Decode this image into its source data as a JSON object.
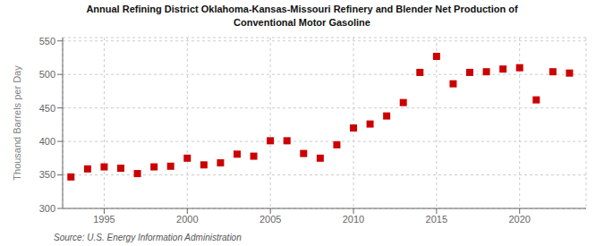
{
  "chart_data": {
    "type": "scatter",
    "title": "Annual Refining District Oklahoma-Kansas-Missouri Refinery and Blender Net Production of\nConventional Motor Gasoline",
    "ylabel": "Thousand Barrels per Day",
    "annotations": [
      "Source: U.S. Energy Information Administration"
    ],
    "x": [
      1993,
      1994,
      1995,
      1996,
      1997,
      1998,
      1999,
      2000,
      2001,
      2002,
      2003,
      2004,
      2005,
      2006,
      2007,
      2008,
      2009,
      2010,
      2011,
      2012,
      2013,
      2014,
      2015,
      2016,
      2017,
      2018,
      2019,
      2020,
      2021,
      2022,
      2023
    ],
    "values": [
      347,
      359,
      362,
      360,
      352,
      362,
      363,
      375,
      365,
      368,
      381,
      378,
      401,
      401,
      382,
      375,
      395,
      420,
      426,
      438,
      458,
      503,
      527,
      486,
      503,
      504,
      508,
      510,
      462,
      504,
      502
    ],
    "color": "#cc0000",
    "marker": "square",
    "xlim": [
      1992.5,
      2024
    ],
    "xticks": [
      1995,
      2000,
      2005,
      2010,
      2015,
      2020
    ],
    "ylim": [
      300,
      555
    ],
    "yticks": [
      300,
      350,
      400,
      450,
      500,
      550
    ],
    "grid": true
  }
}
